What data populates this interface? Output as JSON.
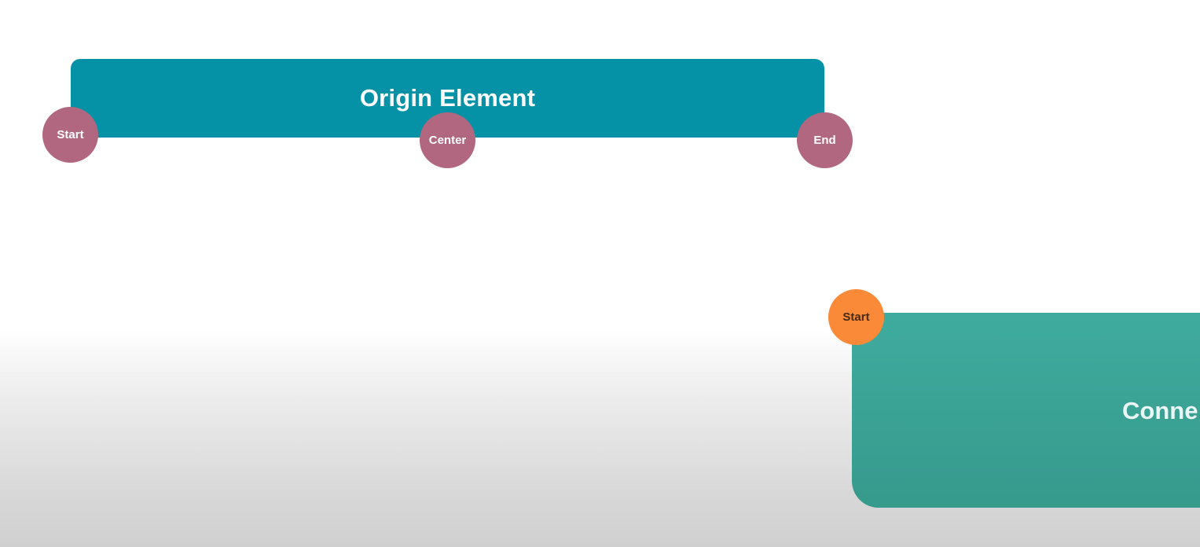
{
  "origin_element": {
    "title": "Origin Element",
    "color": "#0592a6",
    "anchors": {
      "start": "Start",
      "center": "Center",
      "end": "End"
    },
    "anchor_color": "#b0677f"
  },
  "connected_element": {
    "title": "Conne",
    "color": "#3fab9f",
    "anchors": {
      "start": "Start"
    },
    "anchor_color": "#fa8a38"
  }
}
